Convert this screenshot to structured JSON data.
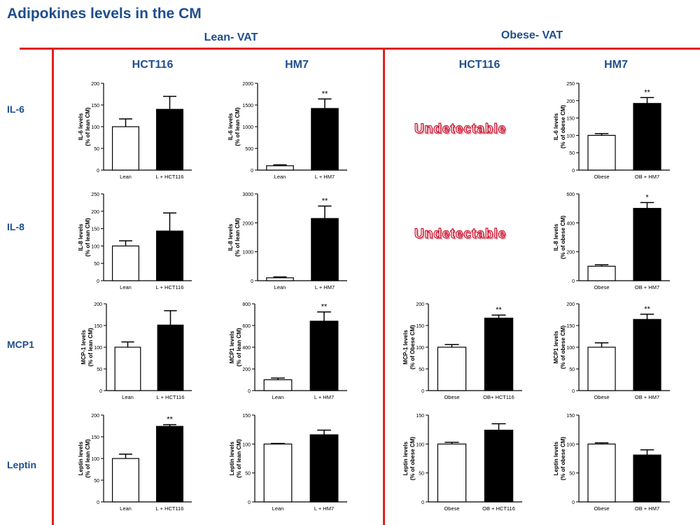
{
  "page": {
    "title": "Adipokines levels in the CM",
    "lean_section": "Lean- VAT",
    "obese_section": "Obese- VAT",
    "columns": [
      "HCT116",
      "HM7",
      "HCT116",
      "HM7"
    ],
    "rows": [
      "IL-6",
      "IL-8",
      "MCP1",
      "Leptin"
    ],
    "undetectable": [
      "Undetectable",
      "Undetectable"
    ]
  },
  "colors": {
    "heading": "#1f4e8c",
    "rule": "#e02020",
    "bar_control": "#ffffff",
    "bar_treated": "#000000"
  },
  "chart_data": [
    {
      "id": "il6-lean-hct116",
      "type": "bar",
      "ylabel": "IL-6 levels",
      "ylabel2": "(% of lean CM)",
      "ylim": [
        0,
        200
      ],
      "ticks": [
        0,
        50,
        100,
        150,
        200
      ],
      "categories": [
        "Lean",
        "L + HCT116"
      ],
      "values": [
        100,
        140
      ],
      "errors": [
        18,
        30
      ],
      "annotations": [
        "",
        ""
      ]
    },
    {
      "id": "il6-lean-hm7",
      "type": "bar",
      "ylabel": "IL-6 levels",
      "ylabel2": "(% of lean CM)",
      "ylim": [
        0,
        2000
      ],
      "ticks": [
        0,
        500,
        1000,
        1500,
        2000
      ],
      "categories": [
        "Lean",
        "L + HM7"
      ],
      "values": [
        100,
        1420
      ],
      "errors": [
        20,
        220
      ],
      "annotations": [
        "",
        "**"
      ]
    },
    {
      "id": "il6-obese-hm7",
      "type": "bar",
      "ylabel": "IL-6 levels",
      "ylabel2": "(% of obese CM)",
      "ylim": [
        0,
        250
      ],
      "ticks": [
        0,
        50,
        100,
        150,
        200,
        250
      ],
      "categories": [
        "Obese",
        "OB + HM7"
      ],
      "values": [
        100,
        192
      ],
      "errors": [
        5,
        17
      ],
      "annotations": [
        "",
        "**"
      ]
    },
    {
      "id": "il8-lean-hct116",
      "type": "bar",
      "ylabel": "IL-8 levels",
      "ylabel2": "(% of lean CM)",
      "ylim": [
        0,
        250
      ],
      "ticks": [
        0,
        50,
        100,
        150,
        200,
        250
      ],
      "categories": [
        "Lean",
        "L + HCT116"
      ],
      "values": [
        100,
        143
      ],
      "errors": [
        15,
        52
      ],
      "annotations": [
        "",
        ""
      ]
    },
    {
      "id": "il8-lean-hm7",
      "type": "bar",
      "ylabel": "IL-8 levels",
      "ylabel2": "(% of lean CM)",
      "ylim": [
        0,
        3000
      ],
      "ticks": [
        0,
        1000,
        2000,
        3000
      ],
      "categories": [
        "Lean",
        "L + HM7"
      ],
      "values": [
        100,
        2150
      ],
      "errors": [
        30,
        430
      ],
      "annotations": [
        "",
        "**"
      ]
    },
    {
      "id": "il8-obese-hm7",
      "type": "bar",
      "ylabel": "IL-8 levels",
      "ylabel2": "(% of obese CM)",
      "ylim": [
        0,
        600
      ],
      "ticks": [
        0,
        200,
        400,
        600
      ],
      "categories": [
        "Obese",
        "OB + HM7"
      ],
      "values": [
        100,
        500
      ],
      "errors": [
        10,
        40
      ],
      "annotations": [
        "",
        "*"
      ]
    },
    {
      "id": "mcp1-lean-hct116",
      "type": "bar",
      "ylabel": "MCP-1 levels",
      "ylabel2": "(% of lean CM)",
      "ylim": [
        0,
        200
      ],
      "ticks": [
        0,
        50,
        100,
        150,
        200
      ],
      "categories": [
        "Lean",
        "L + HCT116"
      ],
      "values": [
        100,
        151
      ],
      "errors": [
        12,
        33
      ],
      "annotations": [
        "",
        ""
      ]
    },
    {
      "id": "mcp1-lean-hm7",
      "type": "bar",
      "ylabel": "MCP1 levels",
      "ylabel2": "(% of lean CM)",
      "ylim": [
        0,
        800
      ],
      "ticks": [
        0,
        200,
        400,
        600,
        800
      ],
      "categories": [
        "Lean",
        "L + HM7"
      ],
      "values": [
        100,
        640
      ],
      "errors": [
        15,
        85
      ],
      "annotations": [
        "",
        "**"
      ]
    },
    {
      "id": "mcp1-obese-hct116",
      "type": "bar",
      "ylabel": "MCP-1 levels",
      "ylabel2": "(% of Obese CM)",
      "ylim": [
        0,
        200
      ],
      "ticks": [
        0,
        50,
        100,
        150,
        200
      ],
      "categories": [
        "Obese",
        "OB+ HCT116"
      ],
      "values": [
        100,
        167
      ],
      "errors": [
        6,
        7
      ],
      "annotations": [
        "",
        "**"
      ]
    },
    {
      "id": "mcp1-obese-hm7",
      "type": "bar",
      "ylabel": "MCP1 levels",
      "ylabel2": "(% of obese CM)",
      "ylim": [
        0,
        200
      ],
      "ticks": [
        0,
        50,
        100,
        150,
        200
      ],
      "categories": [
        "Obese",
        "OB + HM7"
      ],
      "values": [
        100,
        164
      ],
      "errors": [
        10,
        12
      ],
      "annotations": [
        "",
        "**"
      ]
    },
    {
      "id": "leptin-lean-hct116",
      "type": "bar",
      "ylabel": "Leptin levels",
      "ylabel2": "(% of lean CM)",
      "ylim": [
        0,
        200
      ],
      "ticks": [
        0,
        50,
        100,
        150,
        200
      ],
      "categories": [
        "Lean",
        "L + HCT116"
      ],
      "values": [
        100,
        174
      ],
      "errors": [
        10,
        4
      ],
      "annotations": [
        "",
        "**"
      ]
    },
    {
      "id": "leptin-lean-hm7",
      "type": "bar",
      "ylabel": "Leptin levels",
      "ylabel2": "(% of lean CM)",
      "ylim": [
        0,
        150
      ],
      "ticks": [
        0,
        50,
        100,
        150
      ],
      "categories": [
        "Lean",
        "L + HM7"
      ],
      "values": [
        100,
        116
      ],
      "errors": [
        1,
        8
      ],
      "annotations": [
        "",
        ""
      ]
    },
    {
      "id": "leptin-obese-hct116",
      "type": "bar",
      "ylabel": "Leptin levels",
      "ylabel2": "(% of obese CM)",
      "ylim": [
        0,
        150
      ],
      "ticks": [
        0,
        50,
        100,
        150
      ],
      "categories": [
        "Obese",
        "OB + HCT116"
      ],
      "values": [
        100,
        124
      ],
      "errors": [
        3,
        11
      ],
      "annotations": [
        "",
        ""
      ]
    },
    {
      "id": "leptin-obese-hm7",
      "type": "bar",
      "ylabel": "Leptin levels",
      "ylabel2": "(% of obese CM)",
      "ylim": [
        0,
        150
      ],
      "ticks": [
        0,
        50,
        100,
        150
      ],
      "categories": [
        "Obese",
        "OB + HM7"
      ],
      "values": [
        100,
        81
      ],
      "errors": [
        2,
        9
      ],
      "annotations": [
        "",
        ""
      ]
    }
  ]
}
